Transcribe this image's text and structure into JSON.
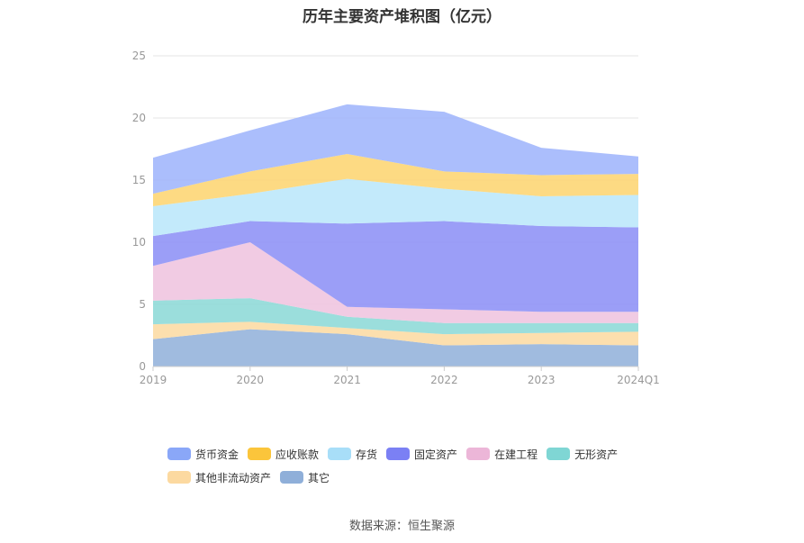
{
  "title": "历年主要资产堆积图（亿元）",
  "source": "数据来源：恒生聚源",
  "chart_data": {
    "type": "area",
    "stacked": true,
    "title": "历年主要资产堆积图（亿元）",
    "categories": [
      "2019",
      "2020",
      "2021",
      "2022",
      "2023",
      "2024Q1"
    ],
    "ylim": [
      0,
      25
    ],
    "yticks": [
      0,
      5,
      10,
      15,
      20,
      25
    ],
    "grid": true,
    "legend_position": "bottom",
    "series": [
      {
        "name": "其它",
        "color": "#8fafd9",
        "values": [
          2.2,
          3.0,
          2.6,
          1.7,
          1.8,
          1.7
        ]
      },
      {
        "name": "其他非流动资产",
        "color": "#fcd9a0",
        "values": [
          1.2,
          0.6,
          0.5,
          0.9,
          0.9,
          1.1
        ]
      },
      {
        "name": "无形资产",
        "color": "#8ad8d6",
        "values": [
          1.9,
          1.9,
          0.9,
          0.9,
          0.8,
          0.7
        ]
      },
      {
        "name": "在建工程",
        "color": "#eec2de",
        "values": [
          2.8,
          4.5,
          0.8,
          1.1,
          0.9,
          0.9
        ]
      },
      {
        "name": "固定资产",
        "color": "#8a8df6",
        "values": [
          2.4,
          1.7,
          6.7,
          7.1,
          6.9,
          6.8
        ]
      },
      {
        "name": "存货",
        "color": "#b9e6fa",
        "values": [
          2.4,
          2.2,
          3.6,
          2.6,
          2.4,
          2.6
        ]
      },
      {
        "name": "应收账款",
        "color": "#fdd36d",
        "values": [
          1.0,
          1.8,
          2.0,
          1.4,
          1.7,
          1.7
        ]
      },
      {
        "name": "货币资金",
        "color": "#9cb3fc",
        "values": [
          2.9,
          3.3,
          4.0,
          4.8,
          2.2,
          1.4
        ]
      }
    ]
  },
  "legend": [
    {
      "name": "货币资金",
      "color": "#8aa7f8"
    },
    {
      "name": "应收账款",
      "color": "#fbc53b"
    },
    {
      "name": "存货",
      "color": "#a8def8"
    },
    {
      "name": "固定资产",
      "color": "#7b80f4"
    },
    {
      "name": "在建工程",
      "color": "#ecb6d8"
    },
    {
      "name": "无形资产",
      "color": "#7fd6d4"
    },
    {
      "name": "其他非流动资产",
      "color": "#fcd9a0"
    },
    {
      "name": "其它",
      "color": "#8fafd9"
    }
  ]
}
